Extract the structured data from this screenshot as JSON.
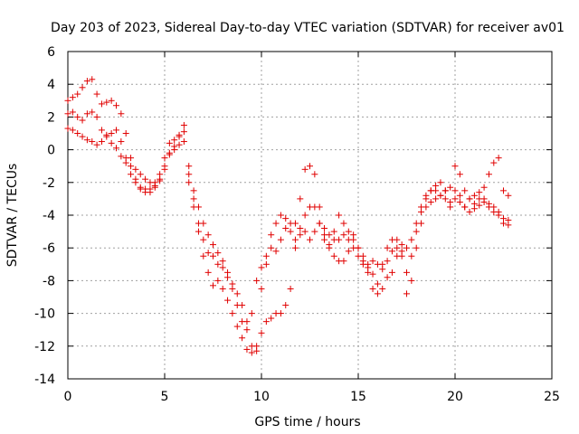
{
  "chart_data": {
    "type": "scatter",
    "title": "Day 203 of 2023, Sidereal Day-to-day VTEC variation (SDTVAR) for receiver av01",
    "xlabel": "GPS time / hours",
    "ylabel": "SDTVAR / TECUs",
    "xlim": [
      0,
      25
    ],
    "ylim": [
      -14,
      6
    ],
    "xticks": [
      "0",
      "5",
      "10",
      "15",
      "20",
      "25"
    ],
    "yticks": [
      "-14",
      "-12",
      "-10",
      "-8",
      "-6",
      "-4",
      "-2",
      "0",
      "2",
      "4",
      "6"
    ],
    "grid": true,
    "marker": "+",
    "series_color": "#e00000",
    "series": [
      {
        "name": "SDTVAR",
        "x": [
          0.0,
          0.25,
          0.5,
          0.75,
          1.0,
          1.25,
          1.5,
          1.75,
          2.0,
          2.25,
          2.5,
          2.75,
          3.0,
          3.25,
          3.5,
          3.75,
          4.0,
          4.25,
          4.5,
          4.75,
          5.0,
          5.25,
          5.5,
          5.75,
          6.0,
          6.25,
          6.5,
          6.75,
          7.0,
          7.25,
          7.5,
          7.75,
          8.0,
          8.25,
          8.5,
          8.75,
          9.0,
          9.25,
          9.5,
          9.75,
          10.0,
          10.25,
          10.5,
          10.75,
          11.0,
          11.25,
          11.5,
          11.75,
          12.0,
          12.25,
          12.5,
          12.75,
          13.0,
          13.25,
          13.5,
          13.75,
          14.0,
          14.25,
          14.5,
          14.75,
          15.0,
          15.25,
          15.5,
          15.75,
          16.0,
          16.25,
          16.5,
          16.75,
          17.0,
          17.25,
          17.5,
          17.75,
          18.0,
          18.25,
          18.5,
          18.75,
          19.0,
          19.25,
          19.5,
          19.75,
          20.0,
          20.25,
          20.5,
          20.75,
          21.0,
          21.25,
          21.5,
          21.75,
          22.0,
          22.25,
          22.5,
          22.75,
          0.0,
          0.25,
          0.5,
          0.75,
          1.0,
          1.25,
          1.5,
          1.75,
          2.0,
          2.25,
          2.5,
          2.75,
          3.0,
          3.25,
          3.5,
          3.75,
          4.0,
          4.25,
          4.5,
          4.75,
          5.0,
          5.25,
          5.5,
          5.75,
          6.0,
          6.25,
          6.5,
          6.75,
          7.0,
          7.25,
          7.5,
          7.75,
          8.0,
          8.25,
          8.5,
          8.75,
          9.0,
          9.25,
          9.5,
          9.75,
          10.0,
          10.25,
          10.5,
          10.75,
          11.0,
          11.25,
          11.5,
          11.75,
          12.0,
          12.25,
          12.5,
          12.75,
          13.0,
          13.25,
          13.5,
          13.75,
          14.0,
          14.25,
          14.5,
          14.75,
          15.0,
          15.25,
          15.5,
          15.75,
          16.0,
          16.25,
          16.5,
          16.75,
          17.0,
          17.25,
          17.5,
          17.75,
          18.0,
          18.25,
          18.5,
          18.75,
          19.0,
          19.25,
          19.5,
          19.75,
          20.0,
          20.25,
          20.5,
          20.75,
          21.0,
          21.25,
          21.5,
          21.75,
          22.0,
          22.25,
          22.5,
          22.75,
          0.0,
          0.25,
          0.5,
          0.75,
          1.0,
          1.25,
          1.5,
          1.75,
          2.0,
          2.25,
          2.5,
          2.75,
          3.0,
          3.25,
          3.5,
          3.75,
          4.0,
          4.25,
          4.5,
          4.75,
          5.0,
          5.25,
          5.5,
          5.75,
          6.0,
          6.25,
          6.5,
          6.75,
          7.0,
          7.25,
          7.5,
          7.75,
          8.0,
          8.25,
          8.5,
          8.75,
          9.0,
          9.25,
          9.5,
          9.75,
          10.0,
          10.25,
          10.5,
          10.75,
          11.0,
          11.25,
          11.5,
          11.75,
          12.0,
          12.25,
          12.5,
          12.75,
          13.0,
          13.25,
          13.5,
          13.75,
          14.0,
          14.25,
          14.5,
          14.75,
          15.0,
          15.25,
          15.5,
          15.75,
          16.0,
          16.25,
          16.5,
          16.75,
          17.0,
          17.25,
          17.5,
          17.75,
          18.0,
          18.25,
          18.5,
          18.75,
          19.0,
          19.25,
          19.5,
          19.75,
          20.0,
          20.25,
          20.5,
          20.75,
          21.0,
          21.25,
          21.5,
          21.75,
          22.0,
          22.25,
          22.5,
          22.75
        ],
        "y": [
          3.0,
          3.2,
          3.4,
          3.8,
          4.2,
          4.3,
          3.4,
          2.8,
          2.9,
          3.0,
          2.7,
          2.2,
          1.0,
          -0.5,
          -1.8,
          -2.4,
          -2.6,
          -2.6,
          -2.3,
          -1.9,
          -1.0,
          -0.3,
          0.2,
          0.8,
          1.5,
          -1.5,
          -2.5,
          -3.5,
          -4.5,
          -5.2,
          -5.8,
          -6.3,
          -8.5,
          -9.2,
          -10.0,
          -10.8,
          -11.5,
          -12.2,
          -12.4,
          -12.0,
          -11.2,
          -10.5,
          -10.3,
          -10.0,
          -10.0,
          -9.5,
          -8.5,
          -5.5,
          -3.0,
          -1.2,
          -1.0,
          -1.5,
          -3.5,
          -5.2,
          -6.0,
          -6.5,
          -6.8,
          -6.8,
          -6.2,
          -5.5,
          -6.0,
          -6.5,
          -7.0,
          -7.6,
          -8.2,
          -8.5,
          -7.8,
          -7.5,
          -6.5,
          -6.2,
          -8.8,
          -8.0,
          -6.0,
          -4.5,
          -3.5,
          -3.2,
          -3.0,
          -2.8,
          -2.5,
          -2.3,
          -2.5,
          -2.8,
          -3.5,
          -3.0,
          -2.8,
          -2.6,
          -3.0,
          -3.3,
          -3.5,
          -3.8,
          -4.2,
          -4.3,
          2.2,
          2.3,
          2.0,
          1.8,
          2.2,
          2.3,
          2.0,
          1.2,
          0.8,
          1.0,
          1.2,
          0.5,
          -0.5,
          -1.5,
          -2.0,
          -2.3,
          -2.4,
          -2.4,
          -2.2,
          -1.5,
          -0.5,
          0.4,
          0.6,
          0.9,
          1.1,
          -1.0,
          -3.0,
          -4.5,
          -5.5,
          -6.3,
          -6.5,
          -7.0,
          -6.8,
          -7.5,
          -8.2,
          -8.8,
          -9.5,
          -10.5,
          -12.0,
          -12.3,
          -8.5,
          -7.0,
          -5.2,
          -4.5,
          -4.0,
          -4.2,
          -5.0,
          -6.0,
          -5.2,
          -4.0,
          -3.5,
          -3.5,
          -4.5,
          -5.5,
          -5.8,
          -5.0,
          -4.0,
          -4.5,
          -5.5,
          -6.0,
          -6.5,
          -6.8,
          -7.5,
          -8.5,
          -8.8,
          -7.0,
          -6.0,
          -5.5,
          -5.5,
          -5.8,
          -7.5,
          -6.5,
          -5.0,
          -3.8,
          -3.0,
          -2.5,
          -2.2,
          -2.0,
          -2.5,
          -3.5,
          -1.0,
          -1.5,
          -2.5,
          -3.0,
          -3.3,
          -3.0,
          -2.3,
          -1.5,
          -0.8,
          -0.5,
          -2.5,
          -2.8,
          1.3,
          1.2,
          1.0,
          0.8,
          0.6,
          0.5,
          0.3,
          0.5,
          0.9,
          0.4,
          0.1,
          -0.4,
          -0.8,
          -1.0,
          -1.2,
          -1.5,
          -1.8,
          -2.0,
          -2.0,
          -1.8,
          -1.2,
          -0.2,
          0.0,
          0.3,
          0.5,
          -2.0,
          -3.5,
          -5.0,
          -6.5,
          -7.5,
          -8.3,
          -8.0,
          -7.2,
          -7.8,
          -8.5,
          -9.5,
          -10.5,
          -11.0,
          -10.0,
          -8.0,
          -7.2,
          -6.5,
          -6.0,
          -6.2,
          -5.5,
          -4.8,
          -4.5,
          -4.5,
          -4.8,
          -5.0,
          -5.5,
          -5.0,
          -4.5,
          -4.8,
          -5.2,
          -5.5,
          -5.5,
          -5.2,
          -5.0,
          -5.2,
          -6.0,
          -7.0,
          -7.2,
          -6.8,
          -7.0,
          -7.3,
          -6.8,
          -6.2,
          -6.0,
          -6.5,
          -6.0,
          -5.5,
          -4.5,
          -3.5,
          -2.8,
          -2.5,
          -2.5,
          -2.8,
          -3.0,
          -3.2,
          -3.0,
          -3.2,
          -3.5,
          -3.8,
          -3.6,
          -3.4,
          -3.2,
          -3.5,
          -3.8,
          -4.0,
          -4.5,
          -4.6
        ]
      }
    ]
  }
}
